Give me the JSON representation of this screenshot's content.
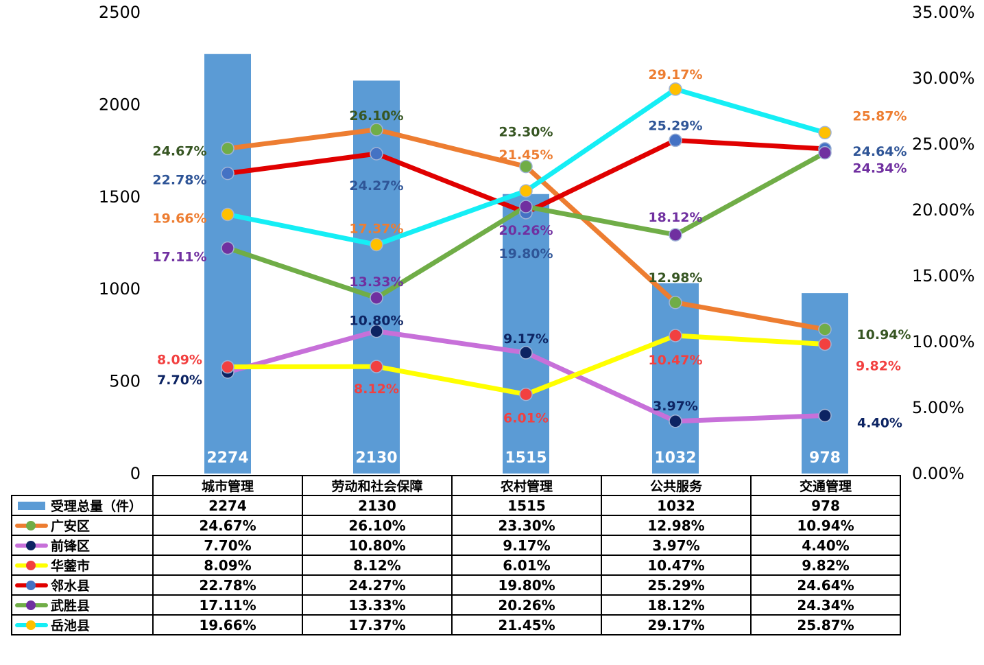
{
  "chart_data": {
    "type": "bar+line",
    "categories": [
      "城市管理",
      "劳动和社会保障",
      "农村管理",
      "公共服务",
      "交通管理"
    ],
    "left_axis": {
      "ticks": [
        "0",
        "500",
        "1000",
        "1500",
        "2000",
        "2500"
      ],
      "min": 0,
      "max": 2500
    },
    "right_axis": {
      "ticks": [
        "0.00%",
        "5.00%",
        "10.00%",
        "15.00%",
        "20.00%",
        "25.00%",
        "30.00%",
        "35.00%"
      ],
      "min": 0,
      "max": 35
    },
    "bar_series": {
      "name": "受理总量（件）",
      "color": "#5b9bd5",
      "values": [
        2274,
        2130,
        1515,
        1032,
        978
      ],
      "labels": [
        "2274",
        "2130",
        "1515",
        "1032",
        "978"
      ]
    },
    "line_series": [
      {
        "name": "广安区",
        "line_color": "#ed7d31",
        "marker_color": "#70ad47",
        "label_color": "#375623",
        "values": [
          24.67,
          26.1,
          23.3,
          12.98,
          10.94
        ],
        "labels": [
          "24.67%",
          "26.10%",
          "23.30%",
          "12.98%",
          "10.94%"
        ]
      },
      {
        "name": "前锋区",
        "line_color": "#c770d9",
        "marker_color": "#0d2463",
        "label_color": "#0d2463",
        "values": [
          7.7,
          10.8,
          9.17,
          3.97,
          4.4
        ],
        "labels": [
          "7.70%",
          "10.80%",
          "9.17%",
          "3.97%",
          "4.40%"
        ]
      },
      {
        "name": "华蓥市",
        "line_color": "#ffff00",
        "marker_color": "#f24040",
        "label_color": "#f24040",
        "values": [
          8.09,
          8.12,
          6.01,
          10.47,
          9.82
        ],
        "labels": [
          "8.09%",
          "8.12%",
          "6.01%",
          "10.47%",
          "9.82%"
        ]
      },
      {
        "name": "邻水县",
        "line_color": "#e00000",
        "marker_color": "#4472c4",
        "label_color": "#2f5597",
        "values": [
          22.78,
          24.27,
          19.8,
          25.29,
          24.64
        ],
        "labels": [
          "22.78%",
          "24.27%",
          "19.80%",
          "25.29%",
          "24.64%"
        ]
      },
      {
        "name": "武胜县",
        "line_color": "#70ad47",
        "marker_color": "#7030a0",
        "label_color": "#7030a0",
        "values": [
          17.11,
          13.33,
          20.26,
          18.12,
          24.34
        ],
        "labels": [
          "17.11%",
          "13.33%",
          "20.26%",
          "18.12%",
          "24.34%"
        ]
      },
      {
        "name": "岳池县",
        "line_color": "#15eef5",
        "marker_color": "#ffc000",
        "label_color": "#ed7d31",
        "values": [
          19.66,
          17.37,
          21.45,
          29.17,
          25.87
        ],
        "labels": [
          "19.66%",
          "17.37%",
          "21.45%",
          "29.17%",
          "25.87%"
        ]
      }
    ]
  }
}
